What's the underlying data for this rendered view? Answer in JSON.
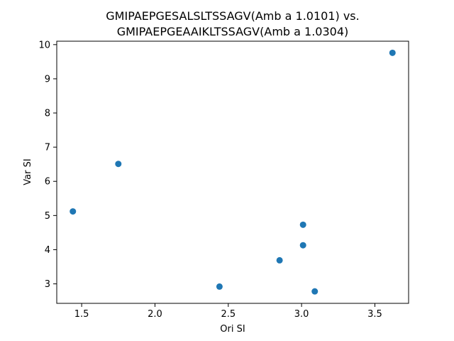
{
  "chart_data": {
    "type": "scatter",
    "title_line1": "GMIPAEPGESALSLTSSAGV(Amb a 1.0101) vs.",
    "title_line2": "GMIPAEPGEAAIKLTSSAGV(Amb a 1.0304)",
    "xlabel": "Ori SI",
    "ylabel": "Var SI",
    "xlim": [
      1.33,
      3.73
    ],
    "ylim": [
      2.43,
      10.1
    ],
    "xticks": [
      1.5,
      2.0,
      2.5,
      3.0,
      3.5
    ],
    "xtick_labels": [
      "1.5",
      "2.0",
      "2.5",
      "3.0",
      "3.5"
    ],
    "yticks": [
      3,
      4,
      5,
      6,
      7,
      8,
      9,
      10
    ],
    "ytick_labels": [
      "3",
      "4",
      "5",
      "6",
      "7",
      "8",
      "9",
      "10"
    ],
    "grid": false,
    "marker_color": "#1f77b4",
    "points": [
      {
        "x": 1.44,
        "y": 5.12
      },
      {
        "x": 1.75,
        "y": 6.51
      },
      {
        "x": 2.44,
        "y": 2.92
      },
      {
        "x": 2.85,
        "y": 3.69
      },
      {
        "x": 3.01,
        "y": 4.73
      },
      {
        "x": 3.01,
        "y": 4.13
      },
      {
        "x": 3.09,
        "y": 2.78
      },
      {
        "x": 3.62,
        "y": 9.76
      }
    ]
  }
}
